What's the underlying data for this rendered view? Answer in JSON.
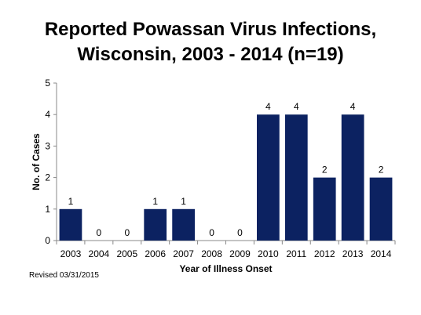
{
  "chart_data": {
    "type": "bar",
    "title_lines": [
      "Reported Powassan Virus Infections,",
      "Wisconsin, 2003 - 2014 (n=19)"
    ],
    "categories": [
      "2003",
      "2004",
      "2005",
      "2006",
      "2007",
      "2008",
      "2009",
      "2010",
      "2011",
      "2012",
      "2013",
      "2014"
    ],
    "values": [
      1,
      0,
      0,
      1,
      1,
      0,
      0,
      4,
      4,
      2,
      4,
      2
    ],
    "xlabel": "Year of Illness Onset",
    "ylabel": "No. of Cases",
    "ylim": [
      0,
      5
    ],
    "yticks": [
      0,
      1,
      2,
      3,
      4,
      5
    ],
    "grid": false,
    "data_labels": true,
    "bar_color": "#0c2261"
  },
  "footnote": "Revised 03/31/2015"
}
